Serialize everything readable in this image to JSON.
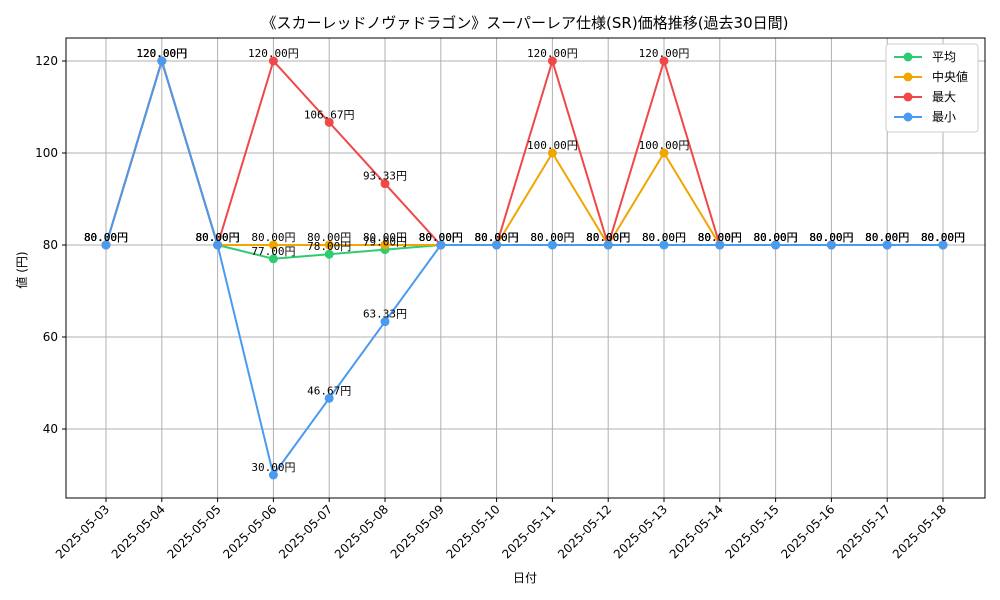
{
  "chart_data": {
    "type": "line",
    "title": "《スカーレッドノヴァドラゴン》スーパーレア仕様(SR)価格推移(過去30日間)",
    "xlabel": "日付",
    "ylabel": "値 (円)",
    "ylim": [
      25,
      125
    ],
    "yticks": [
      40,
      60,
      80,
      100,
      120
    ],
    "grid": true,
    "legend_position": "top-right",
    "value_suffix": "円",
    "categories": [
      "2025-05-03",
      "2025-05-04",
      "2025-05-05",
      "2025-05-06",
      "2025-05-07",
      "2025-05-08",
      "2025-05-09",
      "2025-05-10",
      "2025-05-11",
      "2025-05-12",
      "2025-05-13",
      "2025-05-14",
      "2025-05-15",
      "2025-05-16",
      "2025-05-17",
      "2025-05-18"
    ],
    "series": [
      {
        "name": "平均",
        "color": "#2ecc71",
        "values": [
          80,
          120,
          80,
          77,
          78,
          79,
          80,
          80,
          80,
          80,
          80,
          80,
          80,
          80,
          80,
          80
        ]
      },
      {
        "name": "中央値",
        "color": "#f0a500",
        "values": [
          80,
          120,
          80,
          80,
          80,
          80,
          80,
          80,
          100,
          80,
          100,
          80,
          80,
          80,
          80,
          80
        ]
      },
      {
        "name": "最大",
        "color": "#f04848",
        "values": [
          80,
          120,
          80,
          120,
          106.67,
          93.33,
          80,
          80,
          120,
          80,
          120,
          80,
          80,
          80,
          80,
          80
        ]
      },
      {
        "name": "最小",
        "color": "#4a9af0",
        "values": [
          80,
          120,
          80,
          30,
          46.67,
          63.33,
          80,
          80,
          80,
          80,
          80,
          80,
          80,
          80,
          80,
          80
        ]
      }
    ]
  }
}
